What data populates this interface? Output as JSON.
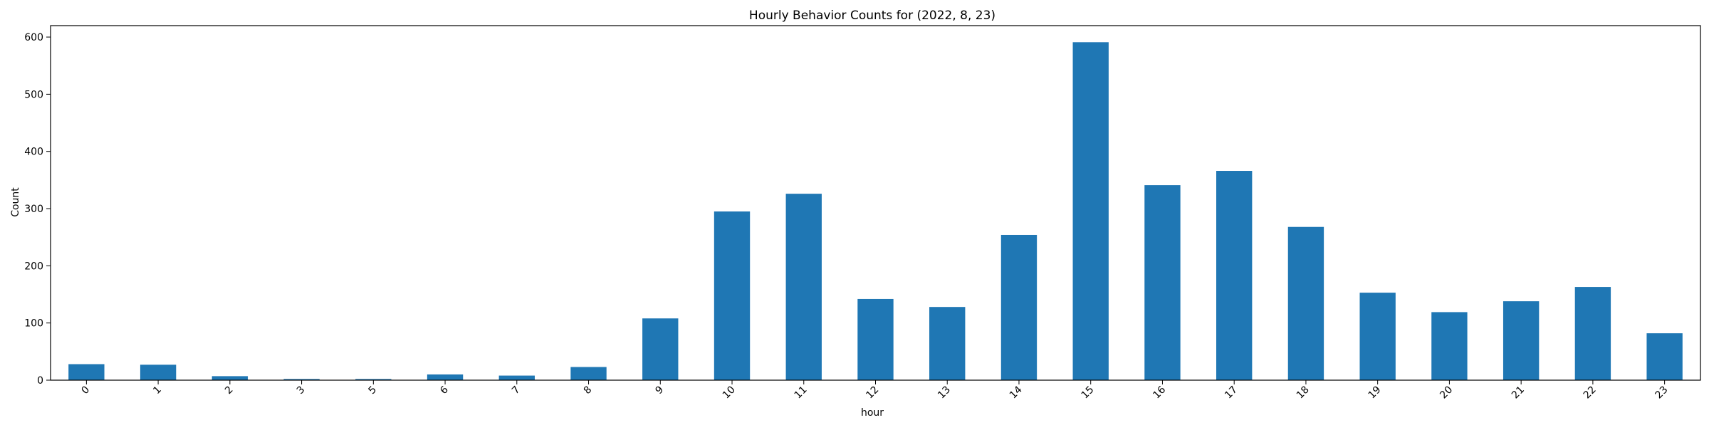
{
  "chart_data": {
    "type": "bar",
    "title": "Hourly Behavior Counts for (2022, 8, 23)",
    "xlabel": "hour",
    "ylabel": "Count",
    "categories": [
      "0",
      "1",
      "2",
      "3",
      "5",
      "6",
      "7",
      "8",
      "9",
      "10",
      "11",
      "12",
      "13",
      "14",
      "15",
      "16",
      "17",
      "18",
      "19",
      "20",
      "21",
      "22",
      "23"
    ],
    "values": [
      28,
      27,
      7,
      2,
      2,
      10,
      8,
      23,
      108,
      295,
      326,
      142,
      128,
      254,
      591,
      341,
      366,
      268,
      153,
      119,
      138,
      163,
      82
    ],
    "ylim": [
      0,
      620
    ],
    "yticks": [
      0,
      100,
      200,
      300,
      400,
      500,
      600
    ],
    "grid": false,
    "legend": "none",
    "bar_color": "#1f77b4"
  }
}
